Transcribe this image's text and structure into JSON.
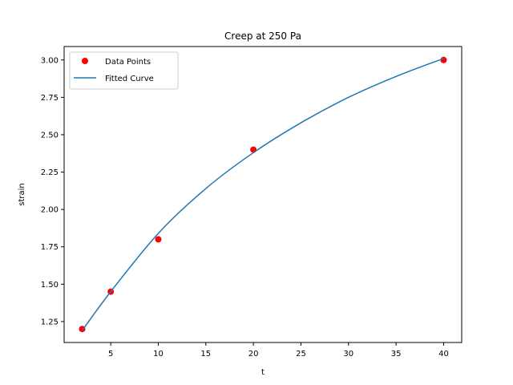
{
  "chart_data": {
    "type": "scatter",
    "title": "Creep at 250 Pa",
    "xlabel": "t",
    "ylabel": "strain",
    "xlim": [
      0.1,
      41.9
    ],
    "ylim": [
      1.11,
      3.09
    ],
    "xticks": [
      5,
      10,
      15,
      20,
      25,
      30,
      35,
      40
    ],
    "yticks": [
      1.25,
      1.5,
      1.75,
      2.0,
      2.25,
      2.5,
      2.75,
      3.0
    ],
    "xtick_labels": [
      "5",
      "10",
      "15",
      "20",
      "25",
      "30",
      "35",
      "40"
    ],
    "ytick_labels": [
      "1.25",
      "1.50",
      "1.75",
      "2.00",
      "2.25",
      "2.50",
      "2.75",
      "3.00"
    ],
    "grid": false,
    "legend_position": "top-left",
    "series": [
      {
        "name": "Data Points",
        "kind": "scatter",
        "color": "#ff0000",
        "x": [
          2,
          5,
          10,
          20,
          40
        ],
        "y": [
          1.2,
          1.45,
          1.8,
          2.4,
          3.0
        ]
      },
      {
        "name": "Fitted Curve",
        "kind": "line",
        "color": "#1f77b4",
        "x": [
          2,
          5,
          10,
          15,
          20,
          25,
          30,
          35,
          40
        ],
        "y": [
          1.19,
          1.45,
          1.84,
          2.14,
          2.38,
          2.58,
          2.75,
          2.89,
          3.01
        ]
      }
    ]
  }
}
